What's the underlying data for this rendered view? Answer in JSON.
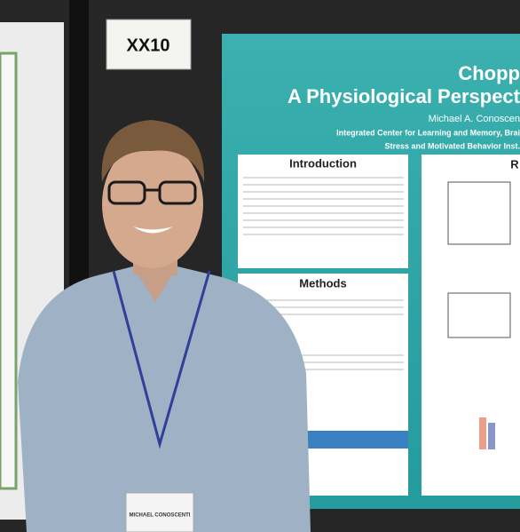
{
  "sign": "XX10",
  "poster": {
    "title": "Chopp",
    "subtitle": "A Physiological Perspect",
    "author": "Michael A. Conoscen",
    "affiliation_1": "Integrated Center for Learning and Memory, Brai",
    "affiliation_2": "Stress and Motivated Behavior Inst.",
    "sections": [
      "Introduction",
      "Methods",
      "R"
    ]
  },
  "badge": {
    "name": "MICHAEL CONOSCENTI"
  }
}
